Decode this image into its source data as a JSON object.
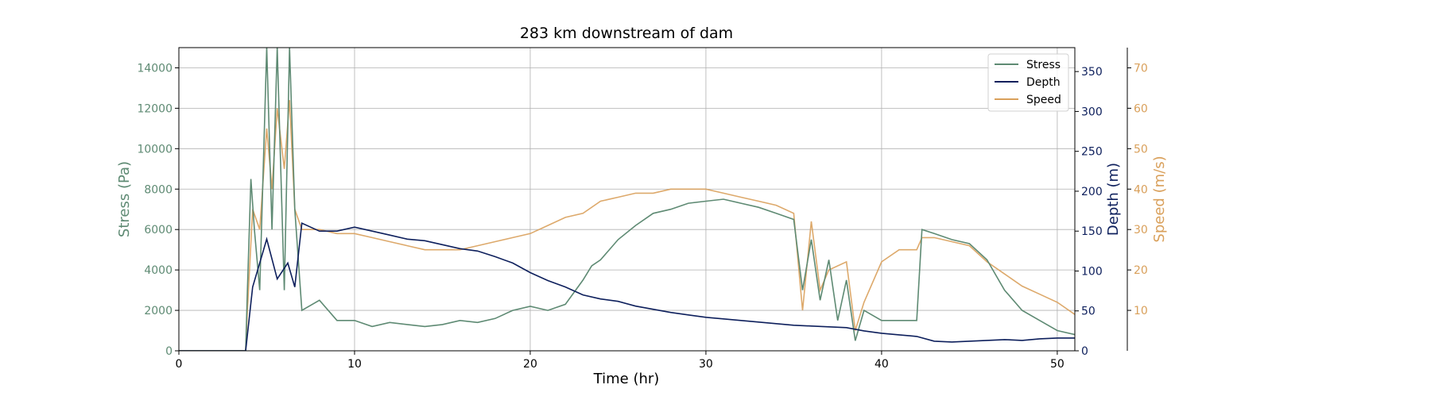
{
  "chart_data": {
    "type": "line",
    "title": "283 km downstream of dam",
    "xlabel": "Time (hr)",
    "xlim": [
      0,
      51
    ],
    "xticks": [
      0,
      10,
      20,
      30,
      40,
      50
    ],
    "grid": true,
    "legend_position": "top-right",
    "axes": [
      {
        "id": "stress",
        "label": "Stress (Pa)",
        "side": "left",
        "ylim": [
          0,
          15000
        ],
        "ticks": [
          0,
          2000,
          4000,
          6000,
          8000,
          10000,
          12000,
          14000
        ],
        "color": "#5e8a73"
      },
      {
        "id": "depth",
        "label": "Depth (m)",
        "side": "right",
        "ylim": [
          0,
          380
        ],
        "ticks": [
          0,
          50,
          100,
          150,
          200,
          250,
          300,
          350
        ],
        "color": "#0d1f5c"
      },
      {
        "id": "speed",
        "label": "Speed (m/s)",
        "side": "right-outer",
        "ylim": [
          0,
          75
        ],
        "ticks": [
          10,
          20,
          30,
          40,
          50,
          60,
          70
        ],
        "color": "#d9a05b"
      }
    ],
    "series": [
      {
        "name": "Stress",
        "axis": "stress",
        "color": "#5e8a73",
        "x": [
          0,
          3.8,
          3.9,
          4.1,
          4.3,
          4.6,
          5.0,
          5.3,
          5.6,
          6.0,
          6.3,
          6.6,
          7.0,
          8,
          9,
          10,
          11,
          12,
          13,
          14,
          15,
          16,
          17,
          18,
          19,
          20,
          21,
          22,
          23,
          23.5,
          24,
          25,
          26,
          27,
          28,
          29,
          30,
          31,
          32,
          33,
          34,
          35,
          35.5,
          36,
          36.5,
          37,
          37.5,
          38,
          38.5,
          39,
          40,
          41,
          42,
          42.3,
          43,
          44,
          45,
          46,
          47,
          48,
          49,
          50,
          51
        ],
        "y": [
          0,
          0,
          3000,
          8500,
          6000,
          3000,
          15000,
          6000,
          15000,
          3000,
          15000,
          7000,
          2000,
          2500,
          1500,
          1500,
          1200,
          1400,
          1300,
          1200,
          1300,
          1500,
          1400,
          1600,
          2000,
          2200,
          2000,
          2300,
          3500,
          4200,
          4500,
          5500,
          6200,
          6800,
          7000,
          7300,
          7400,
          7500,
          7300,
          7100,
          6800,
          6500,
          3000,
          5500,
          2500,
          4500,
          1500,
          3500,
          500,
          2000,
          1500,
          1500,
          1500,
          6000,
          5800,
          5500,
          5300,
          4500,
          3000,
          2000,
          1500,
          1000,
          800
        ]
      },
      {
        "name": "Depth",
        "axis": "depth",
        "color": "#0d1f5c",
        "x": [
          0,
          3.8,
          3.9,
          4.2,
          4.6,
          5.0,
          5.6,
          6.2,
          6.6,
          7.0,
          7.5,
          8,
          9,
          10,
          11,
          12,
          13,
          14,
          15,
          16,
          17,
          18,
          19,
          20,
          21,
          22,
          23,
          24,
          25,
          26,
          27,
          28,
          29,
          30,
          31,
          32,
          33,
          34,
          35,
          36,
          37,
          38,
          39,
          40,
          41,
          42,
          43,
          44,
          45,
          46,
          47,
          48,
          49,
          50,
          51
        ],
        "y": [
          0,
          0,
          20,
          80,
          110,
          140,
          90,
          110,
          80,
          160,
          155,
          150,
          150,
          155,
          150,
          145,
          140,
          138,
          133,
          128,
          125,
          118,
          110,
          98,
          88,
          80,
          70,
          65,
          62,
          56,
          52,
          48,
          45,
          42,
          40,
          38,
          36,
          34,
          32,
          31,
          30,
          29,
          25,
          22,
          20,
          18,
          12,
          11,
          12,
          13,
          14,
          13,
          15,
          16,
          16
        ]
      },
      {
        "name": "Speed",
        "axis": "speed",
        "color": "#d9a05b",
        "x": [
          0,
          3.8,
          3.9,
          4.2,
          4.6,
          5.0,
          5.3,
          5.6,
          6.0,
          6.3,
          6.6,
          7.0,
          8,
          9,
          10,
          11,
          12,
          13,
          14,
          15,
          16,
          17,
          18,
          19,
          20,
          21,
          22,
          23,
          24,
          25,
          26,
          27,
          28,
          29,
          30,
          31,
          32,
          33,
          34,
          35,
          35.5,
          36,
          36.5,
          37,
          38,
          38.5,
          39,
          40,
          41,
          42,
          42.3,
          43,
          44,
          45,
          46,
          47,
          48,
          49,
          50,
          51
        ],
        "y": [
          0,
          0,
          10,
          35,
          30,
          55,
          40,
          60,
          45,
          62,
          35,
          30,
          30,
          29,
          29,
          28,
          27,
          26,
          25,
          25,
          25,
          26,
          27,
          28,
          29,
          31,
          33,
          34,
          37,
          38,
          39,
          39,
          40,
          40,
          40,
          39,
          38,
          37,
          36,
          34,
          10,
          32,
          15,
          20,
          22,
          5,
          12,
          22,
          25,
          25,
          28,
          28,
          27,
          26,
          22,
          19,
          16,
          14,
          12,
          9
        ]
      }
    ]
  }
}
